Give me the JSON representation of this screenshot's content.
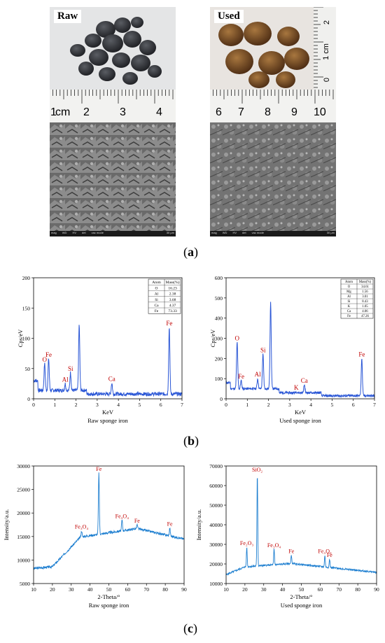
{
  "panel_a": {
    "label": "(a)",
    "label_letter": "a",
    "raw": {
      "tag": "Raw",
      "ruler_cm": "cm",
      "ruler_numbers": [
        "1",
        "2",
        "3",
        "4"
      ],
      "sem_footer": [
        "mag",
        "WD",
        "HV",
        "det",
        "vac mode",
        "30 μm"
      ]
    },
    "used": {
      "tag": "Used",
      "ruler_numbers": [
        "6",
        "7",
        "8",
        "9",
        "10"
      ],
      "ruler_side": [
        "2",
        "1 cm",
        "0"
      ],
      "sem_footer": [
        "mag",
        "WD",
        "HV",
        "det",
        "vac mode",
        "30 μm"
      ]
    }
  },
  "panel_b": {
    "label": "(b)",
    "label_letter": "b"
  },
  "panel_c": {
    "label": "(c)",
    "label_letter": "c"
  },
  "chart_data": [
    {
      "id": "eds-raw",
      "type": "line",
      "caption": "Raw sponge iron",
      "xlabel": "KeV",
      "ylabel": "Cps/eV",
      "xlim": [
        0,
        7
      ],
      "ylim": [
        0,
        200
      ],
      "xticks": [
        0,
        1,
        2,
        3,
        4,
        5,
        6,
        7
      ],
      "yticks": [
        0,
        50,
        100,
        150,
        200
      ],
      "peaks": [
        {
          "label": "O",
          "x": 0.52,
          "y": 58
        },
        {
          "label": "Fe",
          "x": 0.71,
          "y": 66
        },
        {
          "label": "Al",
          "x": 1.49,
          "y": 25
        },
        {
          "label": "Si",
          "x": 1.74,
          "y": 43
        },
        {
          "label": "",
          "x": 2.15,
          "y": 122
        },
        {
          "label": "Ca",
          "x": 3.69,
          "y": 26
        },
        {
          "label": "Fe",
          "x": 6.4,
          "y": 118
        }
      ],
      "table": {
        "headers": [
          "Atom",
          "Mass(%)"
        ],
        "rows": [
          [
            "O",
            "16.23"
          ],
          [
            "Al",
            "2.38"
          ],
          [
            "Si",
            "3.68"
          ],
          [
            "Ca",
            "4.37"
          ],
          [
            "Fe",
            "73.33"
          ]
        ]
      }
    },
    {
      "id": "eds-used",
      "type": "line",
      "caption": "Used sponge iron",
      "xlabel": "KeV",
      "ylabel": "Cps/eV",
      "xlim": [
        0,
        7
      ],
      "ylim": [
        0,
        600
      ],
      "xticks": [
        0,
        1,
        2,
        3,
        4,
        5,
        6,
        7
      ],
      "yticks": [
        0,
        100,
        200,
        300,
        400,
        500,
        600
      ],
      "peaks": [
        {
          "label": "O",
          "x": 0.52,
          "y": 280
        },
        {
          "label": "Fe",
          "x": 0.71,
          "y": 90
        },
        {
          "label": "Al",
          "x": 1.49,
          "y": 100
        },
        {
          "label": "Si",
          "x": 1.74,
          "y": 220
        },
        {
          "label": "",
          "x": 2.1,
          "y": 475
        },
        {
          "label": "K",
          "x": 3.31,
          "y": 35
        },
        {
          "label": "Ca",
          "x": 3.69,
          "y": 70
        },
        {
          "label": "Fe",
          "x": 6.4,
          "y": 200
        }
      ],
      "table": {
        "headers": [
          "Atom",
          "Mass(%)"
        ],
        "rows": [
          [
            "O",
            "34.61"
          ],
          [
            "Mg",
            "1.56"
          ],
          [
            "Al",
            "3.01"
          ],
          [
            "Si",
            "8.43"
          ],
          [
            "K",
            "1.05"
          ],
          [
            "Ca",
            "4.06"
          ],
          [
            "Fe",
            "47.26"
          ]
        ]
      }
    },
    {
      "id": "xrd-raw",
      "type": "line",
      "caption": "Raw sponge iron",
      "xlabel": "2-Theta/°",
      "ylabel": "Intensity/a.u.",
      "xlim": [
        10,
        90
      ],
      "ylim": [
        5000,
        30000
      ],
      "xticks": [
        10,
        20,
        30,
        40,
        50,
        60,
        70,
        80,
        90
      ],
      "yticks": [
        5000,
        10000,
        15000,
        20000,
        25000,
        30000
      ],
      "peaks": [
        {
          "label": "Fe₃O₄",
          "x": 35.5,
          "y": 16200
        },
        {
          "label": "Fe",
          "x": 44.7,
          "y": 28500
        },
        {
          "label": "Fe₃O₄",
          "x": 57,
          "y": 18500
        },
        {
          "label": "Fe",
          "x": 65,
          "y": 17500
        },
        {
          "label": "Fe",
          "x": 82.4,
          "y": 16800
        }
      ]
    },
    {
      "id": "xrd-used",
      "type": "line",
      "caption": "Used sponge iron",
      "xlabel": "2-Theta/°",
      "ylabel": "Intensity/a.u.",
      "xlim": [
        10,
        90
      ],
      "ylim": [
        10000,
        70000
      ],
      "xticks": [
        10,
        20,
        30,
        40,
        50,
        60,
        70,
        80,
        90
      ],
      "yticks": [
        10000,
        20000,
        30000,
        40000,
        50000,
        60000,
        70000
      ],
      "peaks": [
        {
          "label": "Fe₂O₃",
          "x": 21,
          "y": 28500
        },
        {
          "label": "SiO₂",
          "x": 26.6,
          "y": 66000
        },
        {
          "label": "Fe₃O₄",
          "x": 35.5,
          "y": 27500
        },
        {
          "label": "Fe",
          "x": 44.7,
          "y": 24500
        },
        {
          "label": "Fe₃O₄",
          "x": 62.5,
          "y": 24500
        },
        {
          "label": "Fe",
          "x": 65,
          "y": 22500
        }
      ]
    }
  ],
  "colors": {
    "eds_line": "#2b57d6",
    "xrd_line": "#1e7fd0",
    "peak_label": "#c00000",
    "axis": "#000000"
  }
}
